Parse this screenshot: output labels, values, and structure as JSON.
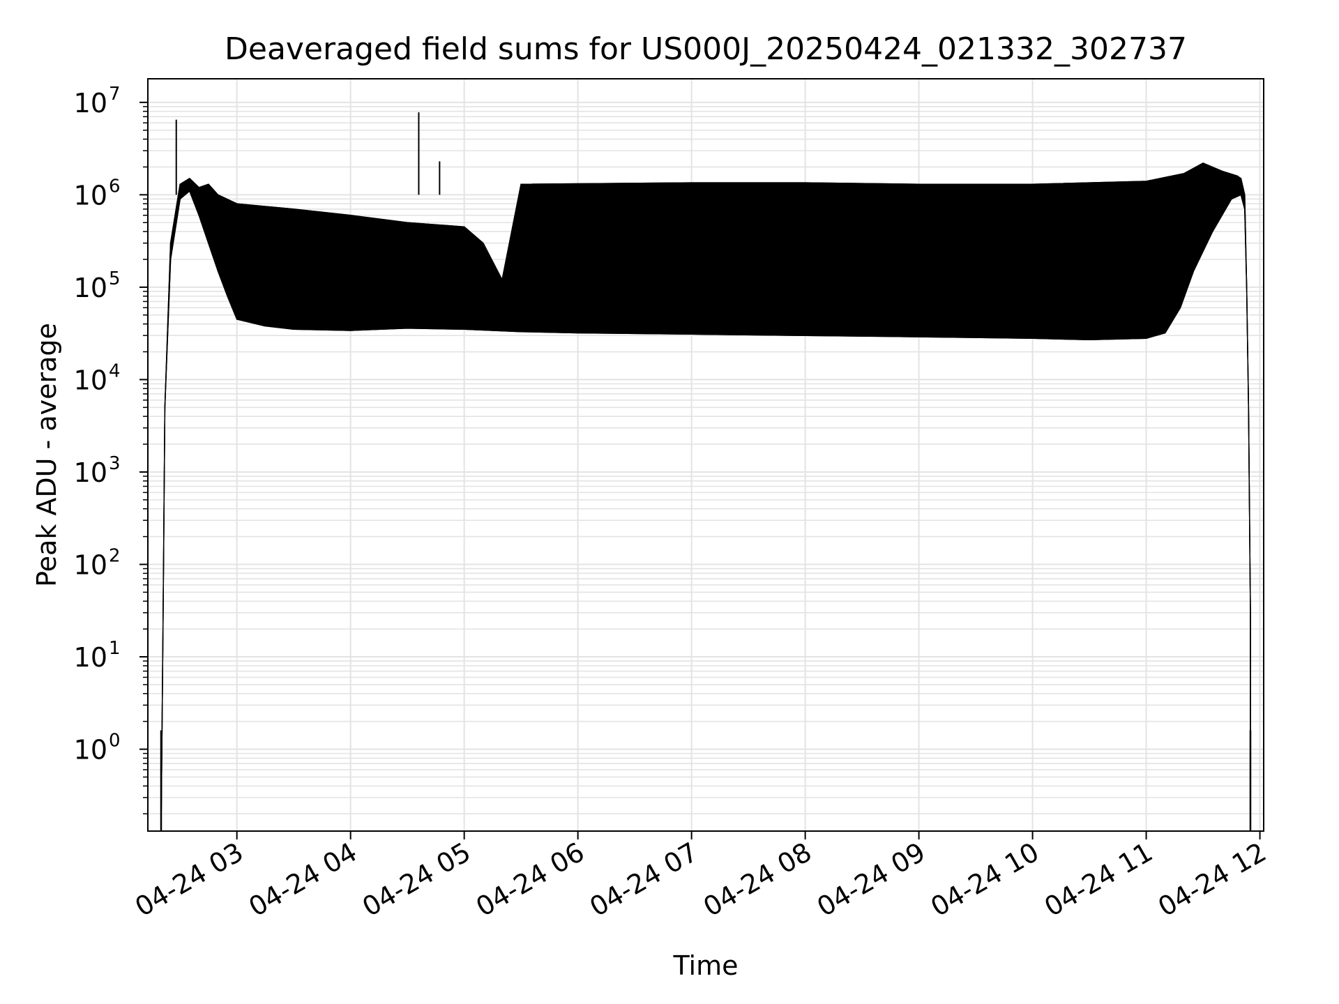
{
  "chart_data": {
    "type": "line",
    "title": "Deaveraged field sums for US000J_20250424_021332_302737",
    "xlabel": "Time",
    "ylabel": "Peak ADU - average",
    "y_scale": "log",
    "grid": true,
    "line_color": "#000000",
    "grid_color": "#e3e3e3",
    "xlim": [
      "2025-04-24T02:13",
      "2025-04-24T12:02"
    ],
    "ylim": [
      0.13,
      18000000
    ],
    "x_ticks": [
      {
        "value": "2025-04-24T03:00",
        "label": "04-24 03"
      },
      {
        "value": "2025-04-24T04:00",
        "label": "04-24 04"
      },
      {
        "value": "2025-04-24T05:00",
        "label": "04-24 05"
      },
      {
        "value": "2025-04-24T06:00",
        "label": "04-24 06"
      },
      {
        "value": "2025-04-24T07:00",
        "label": "04-24 07"
      },
      {
        "value": "2025-04-24T08:00",
        "label": "04-24 08"
      },
      {
        "value": "2025-04-24T09:00",
        "label": "04-24 09"
      },
      {
        "value": "2025-04-24T10:00",
        "label": "04-24 10"
      },
      {
        "value": "2025-04-24T11:00",
        "label": "04-24 11"
      },
      {
        "value": "2025-04-24T12:00",
        "label": "04-24 12"
      }
    ],
    "y_ticks": [
      {
        "value": 1,
        "base": "10",
        "exp": "0"
      },
      {
        "value": 10,
        "base": "10",
        "exp": "1"
      },
      {
        "value": 100,
        "base": "10",
        "exp": "2"
      },
      {
        "value": 1000,
        "base": "10",
        "exp": "3"
      },
      {
        "value": 10000,
        "base": "10",
        "exp": "4"
      },
      {
        "value": 100000,
        "base": "10",
        "exp": "5"
      },
      {
        "value": 1000000,
        "base": "10",
        "exp": "6"
      },
      {
        "value": 10000000,
        "base": "10",
        "exp": "7"
      }
    ],
    "series": [
      {
        "envelope_low": [
          [
            "2025-04-24T02:20",
            0.13
          ],
          [
            "2025-04-24T02:21",
            20
          ],
          [
            "2025-04-24T02:22",
            5000
          ],
          [
            "2025-04-24T02:25",
            200000
          ],
          [
            "2025-04-24T02:30",
            900000
          ],
          [
            "2025-04-24T02:35",
            1100000
          ],
          [
            "2025-04-24T02:40",
            600000
          ],
          [
            "2025-04-24T02:45",
            300000
          ],
          [
            "2025-04-24T02:50",
            150000
          ],
          [
            "2025-04-24T02:55",
            80000
          ],
          [
            "2025-04-24T03:00",
            45000
          ],
          [
            "2025-04-24T03:15",
            38000
          ],
          [
            "2025-04-24T03:30",
            35000
          ],
          [
            "2025-04-24T04:00",
            34000
          ],
          [
            "2025-04-24T04:30",
            36000
          ],
          [
            "2025-04-24T05:00",
            35000
          ],
          [
            "2025-04-24T05:15",
            34000
          ],
          [
            "2025-04-24T05:30",
            33000
          ],
          [
            "2025-04-24T06:00",
            32000
          ],
          [
            "2025-04-24T07:00",
            31000
          ],
          [
            "2025-04-24T08:00",
            30000
          ],
          [
            "2025-04-24T09:00",
            29000
          ],
          [
            "2025-04-24T10:00",
            28000
          ],
          [
            "2025-04-24T10:30",
            27000
          ],
          [
            "2025-04-24T11:00",
            28000
          ],
          [
            "2025-04-24T11:10",
            32000
          ],
          [
            "2025-04-24T11:18",
            60000
          ],
          [
            "2025-04-24T11:25",
            150000
          ],
          [
            "2025-04-24T11:35",
            400000
          ],
          [
            "2025-04-24T11:45",
            900000
          ],
          [
            "2025-04-24T11:50",
            1000000
          ],
          [
            "2025-04-24T11:52",
            700000
          ],
          [
            "2025-04-24T11:53",
            100000
          ],
          [
            "2025-04-24T11:54",
            5000
          ],
          [
            "2025-04-24T11:55",
            30
          ],
          [
            "2025-04-24T11:55",
            0.13
          ]
        ],
        "envelope_high": [
          [
            "2025-04-24T02:20",
            0.13
          ],
          [
            "2025-04-24T02:21",
            20
          ],
          [
            "2025-04-24T02:22",
            5000
          ],
          [
            "2025-04-24T02:25",
            300000
          ],
          [
            "2025-04-24T02:30",
            1300000
          ],
          [
            "2025-04-24T02:35",
            1500000
          ],
          [
            "2025-04-24T02:40",
            1200000
          ],
          [
            "2025-04-24T02:45",
            1300000
          ],
          [
            "2025-04-24T02:50",
            1000000
          ],
          [
            "2025-04-24T03:00",
            800000
          ],
          [
            "2025-04-24T03:30",
            700000
          ],
          [
            "2025-04-24T04:00",
            600000
          ],
          [
            "2025-04-24T04:30",
            500000
          ],
          [
            "2025-04-24T05:00",
            450000
          ],
          [
            "2025-04-24T05:10",
            300000
          ],
          [
            "2025-04-24T05:20",
            120000
          ],
          [
            "2025-04-24T05:30",
            1300000
          ],
          [
            "2025-04-24T07:00",
            1350000
          ],
          [
            "2025-04-24T08:00",
            1350000
          ],
          [
            "2025-04-24T09:00",
            1300000
          ],
          [
            "2025-04-24T10:00",
            1300000
          ],
          [
            "2025-04-24T11:00",
            1400000
          ],
          [
            "2025-04-24T11:20",
            1700000
          ],
          [
            "2025-04-24T11:30",
            2200000
          ],
          [
            "2025-04-24T11:40",
            1800000
          ],
          [
            "2025-04-24T11:48",
            1600000
          ],
          [
            "2025-04-24T11:50",
            1500000
          ],
          [
            "2025-04-24T11:52",
            1000000
          ],
          [
            "2025-04-24T11:53",
            100000
          ],
          [
            "2025-04-24T11:54",
            5000
          ],
          [
            "2025-04-24T11:55",
            30
          ],
          [
            "2025-04-24T11:55",
            0.13
          ]
        ],
        "spikes": [
          [
            "2025-04-24T02:28",
            6500000
          ],
          [
            "2025-04-24T04:36",
            7800000
          ],
          [
            "2025-04-24T04:47",
            2300000
          ]
        ],
        "edge_marks": [
          [
            "2025-04-24T02:20",
            1.6
          ],
          [
            "2025-04-24T11:55",
            1.6
          ]
        ]
      }
    ]
  }
}
